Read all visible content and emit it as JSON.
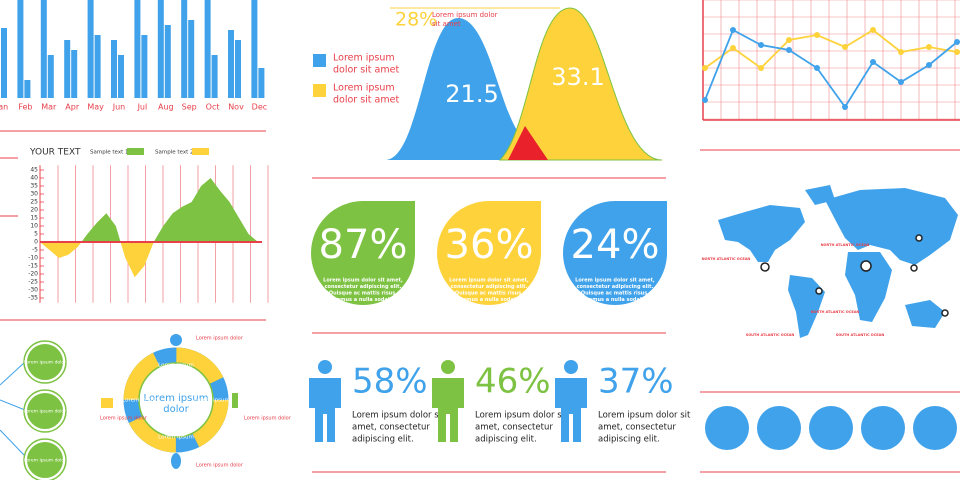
{
  "bar_chart": {
    "categories": [
      "Jan",
      "Feb",
      "Mar",
      "Apr",
      "May",
      "Jun",
      "Jul",
      "Aug",
      "Sep",
      "Oct",
      "Nov",
      "Dec"
    ],
    "series": [
      {
        "color": "#3fa2ea",
        "values": [
          100,
          100,
          100,
          58,
          100,
          58,
          100,
          100,
          100,
          100,
          68,
          100
        ]
      },
      {
        "color": "#3fa2ea",
        "values": [
          70,
          18,
          43,
          48,
          63,
          43,
          63,
          73,
          78,
          43,
          58,
          30
        ]
      }
    ]
  },
  "bell_chart": {
    "callout_value": "28%",
    "callout_lines": [
      "Lorem ipsum dolor",
      "sit amet"
    ],
    "legend": [
      {
        "color": "#3fa2ea",
        "lines": [
          "Lorem ipsum",
          "dolor sit amet"
        ]
      },
      {
        "color": "#fdd23b",
        "lines": [
          "Lorem ipsum",
          "dolor sit amet"
        ]
      }
    ],
    "peaks": [
      21.5,
      33.1
    ]
  },
  "line_chart": {
    "series": [
      {
        "color": "#3fa2ea",
        "values": [
          20,
          90,
          75,
          70,
          52,
          13,
          58,
          38,
          55,
          78
        ]
      },
      {
        "color": "#fdd23b",
        "values": [
          52,
          72,
          52,
          80,
          85,
          73,
          90,
          68,
          73,
          68
        ]
      }
    ]
  },
  "area_chart": {
    "title": "YOUR TEXT",
    "legend": [
      {
        "name": "Sample text 1",
        "color": "#7dc242"
      },
      {
        "name": "Sample text 2",
        "color": "#fdd23b"
      }
    ],
    "ylim": [
      -38,
      48
    ],
    "yticks": [
      45,
      40,
      35,
      30,
      25,
      20,
      15,
      10,
      5,
      0,
      -5,
      -10,
      -15,
      -20,
      -25,
      -30,
      -35
    ],
    "values": [
      0,
      -5,
      -10,
      -8,
      -3,
      5,
      12,
      18,
      10,
      -10,
      -22,
      -15,
      0,
      10,
      18,
      22,
      25,
      35,
      40,
      32,
      25,
      15,
      5,
      0
    ]
  },
  "percent_circles": [
    {
      "label": "87%",
      "color": "#7dc242",
      "lines": [
        "Lorem ipsum dolor sit amet,",
        "consectetur adipiscing elit.",
        "Quisque ac mattis risus.",
        "Vivamus a nulla sodales."
      ]
    },
    {
      "label": "36%",
      "color": "#fdd23b",
      "lines": [
        "Lorem ipsum dolor sit amet,",
        "consectetur adipiscing elit.",
        "Quisque ac mattis risus.",
        "Vivamus a nulla sodales."
      ]
    },
    {
      "label": "24%",
      "color": "#3fa2ea",
      "lines": [
        "Lorem ipsum dolor sit amet,",
        "consectetur adipiscing elit.",
        "Quisque ac mattis risus.",
        "Vivamus a nulla sodales."
      ]
    }
  ],
  "people": [
    {
      "label": "58%",
      "color": "#3fa2ea",
      "lines": [
        "Lorem ipsum dolor sit",
        "amet, consectetur",
        "adipiscing elit."
      ]
    },
    {
      "label": "46%",
      "color": "#7dc242",
      "lines": [
        "Lorem ipsum dolor sit",
        "amet, consectetur",
        "adipiscing elit."
      ]
    },
    {
      "label": "37%",
      "color": "#3fa2ea",
      "lines": [
        "Lorem ipsum dolor sit",
        "amet, consectetur",
        "adipiscing elit."
      ]
    }
  ],
  "cycle": {
    "center": [
      "Lorem ipsum",
      "dolor"
    ],
    "segments": [
      "Lorem ipsum",
      "Lorem ipsum",
      "Lorem ipsum",
      "Lorem ipsum"
    ],
    "notes": [
      "Lorem ipsum dolor",
      "Lorem ipsum dolor",
      "Lorem ipsum dolor",
      "Lorem ipsum dolor"
    ]
  },
  "nodes": [
    "Lorem ipsum dolor",
    "Lorem ipsum dolor",
    "Lorem ipsum dolor"
  ],
  "map": {
    "labels": [
      "NORTH ATLANTIC OCEAN",
      "NORTH ATLANTIC OCEAN",
      "NORTH ATLANTIC OCEAN",
      "SOUTH ATLANTIC OCEAN",
      "SOUTH ATLANTIC OCEAN"
    ]
  }
}
